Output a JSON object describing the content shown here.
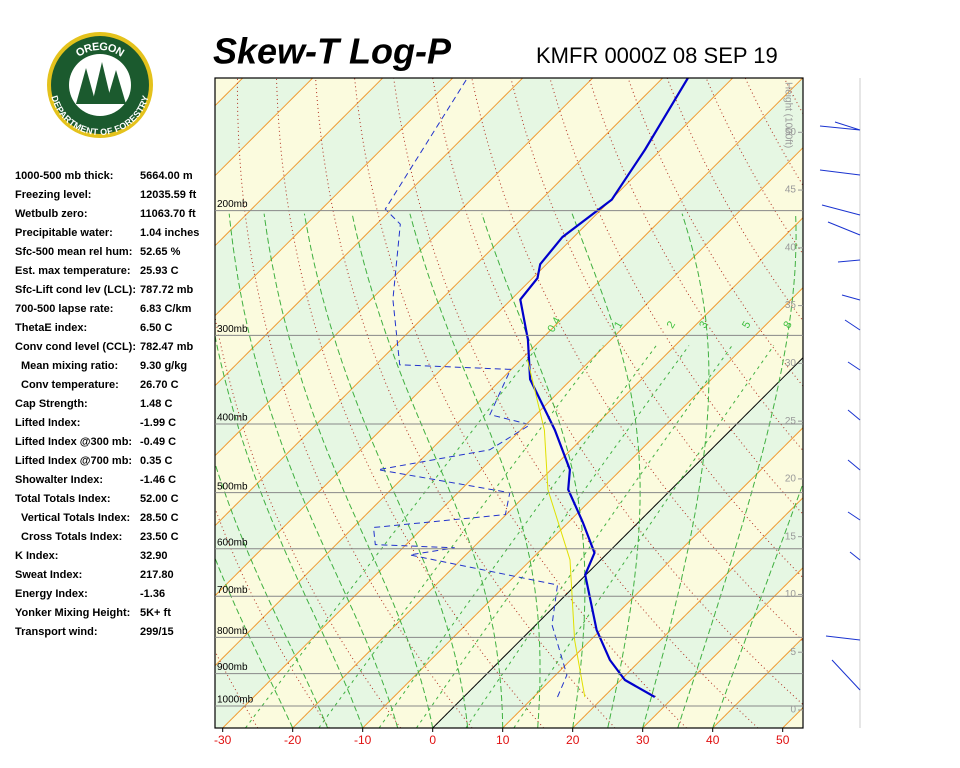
{
  "header": {
    "logo": {
      "top": "OREGON",
      "bottom": "DEPARTMENT OF FORESTRY"
    },
    "title": "Skew-T Log-P",
    "station": "KMFR 0000Z 08 SEP 19"
  },
  "indices": [
    {
      "label": "1000-500 mb thick:",
      "value": "5664.00 m"
    },
    {
      "label": "Freezing level:",
      "value": "12035.59 ft"
    },
    {
      "label": "Wetbulb zero:",
      "value": "11063.70 ft"
    },
    {
      "label": "Precipitable water:",
      "value": "1.04 inches"
    },
    {
      "label": "Sfc-500 mean rel hum:",
      "value": "52.65 %"
    },
    {
      "label": "Est. max temperature:",
      "value": "25.93 C"
    },
    {
      "label": "Sfc-Lift cond lev (LCL):",
      "value": "787.72 mb"
    },
    {
      "label": "700-500 lapse rate:",
      "value": "6.83 C/km"
    },
    {
      "label": "ThetaE index:",
      "value": "6.50 C"
    },
    {
      "label": "Conv cond level (CCL):",
      "value": "782.47 mb"
    },
    {
      "label": "Mean mixing ratio:",
      "value": "9.30 g/kg",
      "indent": true
    },
    {
      "label": "Conv temperature:",
      "value": "26.70 C",
      "indent": true
    },
    {
      "label": "Cap Strength:",
      "value": "1.48 C"
    },
    {
      "label": "Lifted Index:",
      "value": "-1.99 C"
    },
    {
      "label": "Lifted Index @300 mb:",
      "value": "-0.49 C"
    },
    {
      "label": "Lifted Index @700 mb:",
      "value": "0.35 C"
    },
    {
      "label": "Showalter Index:",
      "value": "-1.46 C"
    },
    {
      "label": "Total Totals Index:",
      "value": "52.00 C"
    },
    {
      "label": "Vertical Totals Index:",
      "value": "28.50 C",
      "indent": true
    },
    {
      "label": "Cross Totals Index:",
      "value": "23.50 C",
      "indent": true
    },
    {
      "label": "K Index:",
      "value": "32.90"
    },
    {
      "label": "Sweat Index:",
      "value": "217.80"
    },
    {
      "label": "Energy Index:",
      "value": "-1.36"
    },
    {
      "label": "Yonker Mixing Height:",
      "value": "5K+ ft"
    },
    {
      "label": "Transport wind:",
      "value": "299/15"
    }
  ],
  "chart_data": {
    "type": "skewt",
    "xlim": [
      -31.1,
      52.9
    ],
    "xticks": [
      -30,
      -20,
      -10,
      0,
      10,
      20,
      30,
      40,
      50
    ],
    "ylim": [
      1074,
      130
    ],
    "log_y": true,
    "yticks": [
      {
        "value": 200,
        "label": "200mb"
      },
      {
        "value": 300,
        "label": "300mb"
      },
      {
        "value": 400,
        "label": "400mb"
      },
      {
        "value": 500,
        "label": "500mb"
      },
      {
        "value": 600,
        "label": "600mb"
      },
      {
        "value": 700,
        "label": "700mb"
      },
      {
        "value": 800,
        "label": "800mb"
      },
      {
        "value": 900,
        "label": "900mb"
      },
      {
        "value": 1000,
        "label": "1000mb"
      }
    ],
    "y2lim": [
      -1.56,
      54.7
    ],
    "y2ticks": [
      0,
      5,
      10,
      15,
      20,
      25,
      30,
      35,
      40,
      45,
      50
    ],
    "y2_label": "Height (1000ft)",
    "mixing_ratios": [
      0.4,
      1,
      2,
      3,
      5,
      8
    ],
    "series": [
      {
        "color": "#0000cc",
        "width": 2.2,
        "dash": false,
        "pressure": [
          971,
          919,
          861,
          781,
          653,
          608,
          550,
          495,
          464,
          408,
          346,
          304,
          267,
          249,
          238,
          218,
          193,
          164,
          130
        ],
        "values": [
          27.3,
          20.6,
          15.6,
          9.4,
          -0.1,
          -1.9,
          -8.0,
          -14.7,
          -17.3,
          -25.1,
          -35.9,
          -41.9,
          -48.7,
          -49.3,
          -50.9,
          -51.6,
          -49.9,
          -52.3,
          -56.4
        ]
      },
      {
        "color": "#2233cc",
        "width": 1,
        "dash": true,
        "pressure": [
          971,
          904,
          768,
          675,
          612,
          598,
          592,
          560,
          537,
          500,
          464,
          435,
          401,
          388,
          335,
          330,
          267,
          209,
          199,
          130
        ],
        "values": [
          13.4,
          11.6,
          2.3,
          -2.6,
          -28.0,
          -22.6,
          -34.4,
          -37.1,
          -20.1,
          -22.6,
          -44.7,
          -31.6,
          -29.4,
          -36.6,
          -40.1,
          -56.6,
          -66.9,
          -76.6,
          -80.9,
          -87.9
        ]
      },
      {
        "color": "#e0e000",
        "width": 1,
        "dash": false,
        "pressure": [
          971,
          807,
          622,
          495,
          408,
          325
        ],
        "values": [
          17.3,
          7.7,
          -4.4,
          -17.6,
          -26.6,
          -39.0
        ]
      }
    ]
  }
}
